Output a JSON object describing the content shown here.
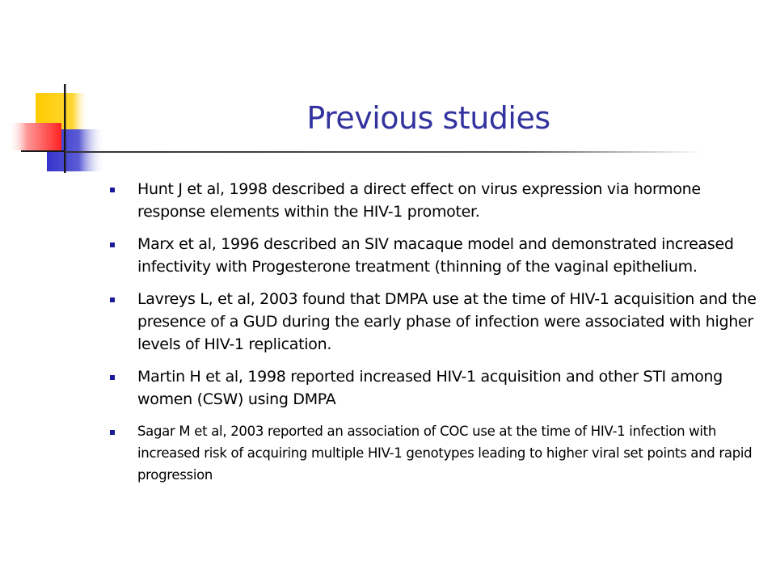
{
  "slide": {
    "title": "Previous studies",
    "accent_colors": {
      "title": "#3333a0",
      "bullet": "#1a1a9a",
      "yellow": "#ffcc00",
      "blue": "#3333cc",
      "red": "#ff3333"
    },
    "bullets": [
      {
        "text": "Hunt J et al, 1998 described a direct effect on virus expression via hormone response elements within the HIV-1 promoter.",
        "size": "large"
      },
      {
        "text": "Marx et al, 1996 described an SIV macaque model and demonstrated increased infectivity with Progesterone treatment (thinning of the vaginal epithelium.",
        "size": "large"
      },
      {
        "text": "Lavreys L, et al, 2003 found that DMPA use at the time of HIV-1 acquisition and the presence of a GUD during the early phase of infection were associated with higher levels of HIV-1 replication.",
        "size": "large"
      },
      {
        "text": "Martin H et al, 1998 reported increased HIV-1 acquisition and other STI among women (CSW) using DMPA",
        "size": "large"
      },
      {
        "text": "Sagar M et al, 2003 reported an association of COC use at the time of HIV-1 infection with increased risk of acquiring multiple HIV-1 genotypes leading to higher viral set points and rapid progression",
        "size": "small"
      }
    ]
  }
}
